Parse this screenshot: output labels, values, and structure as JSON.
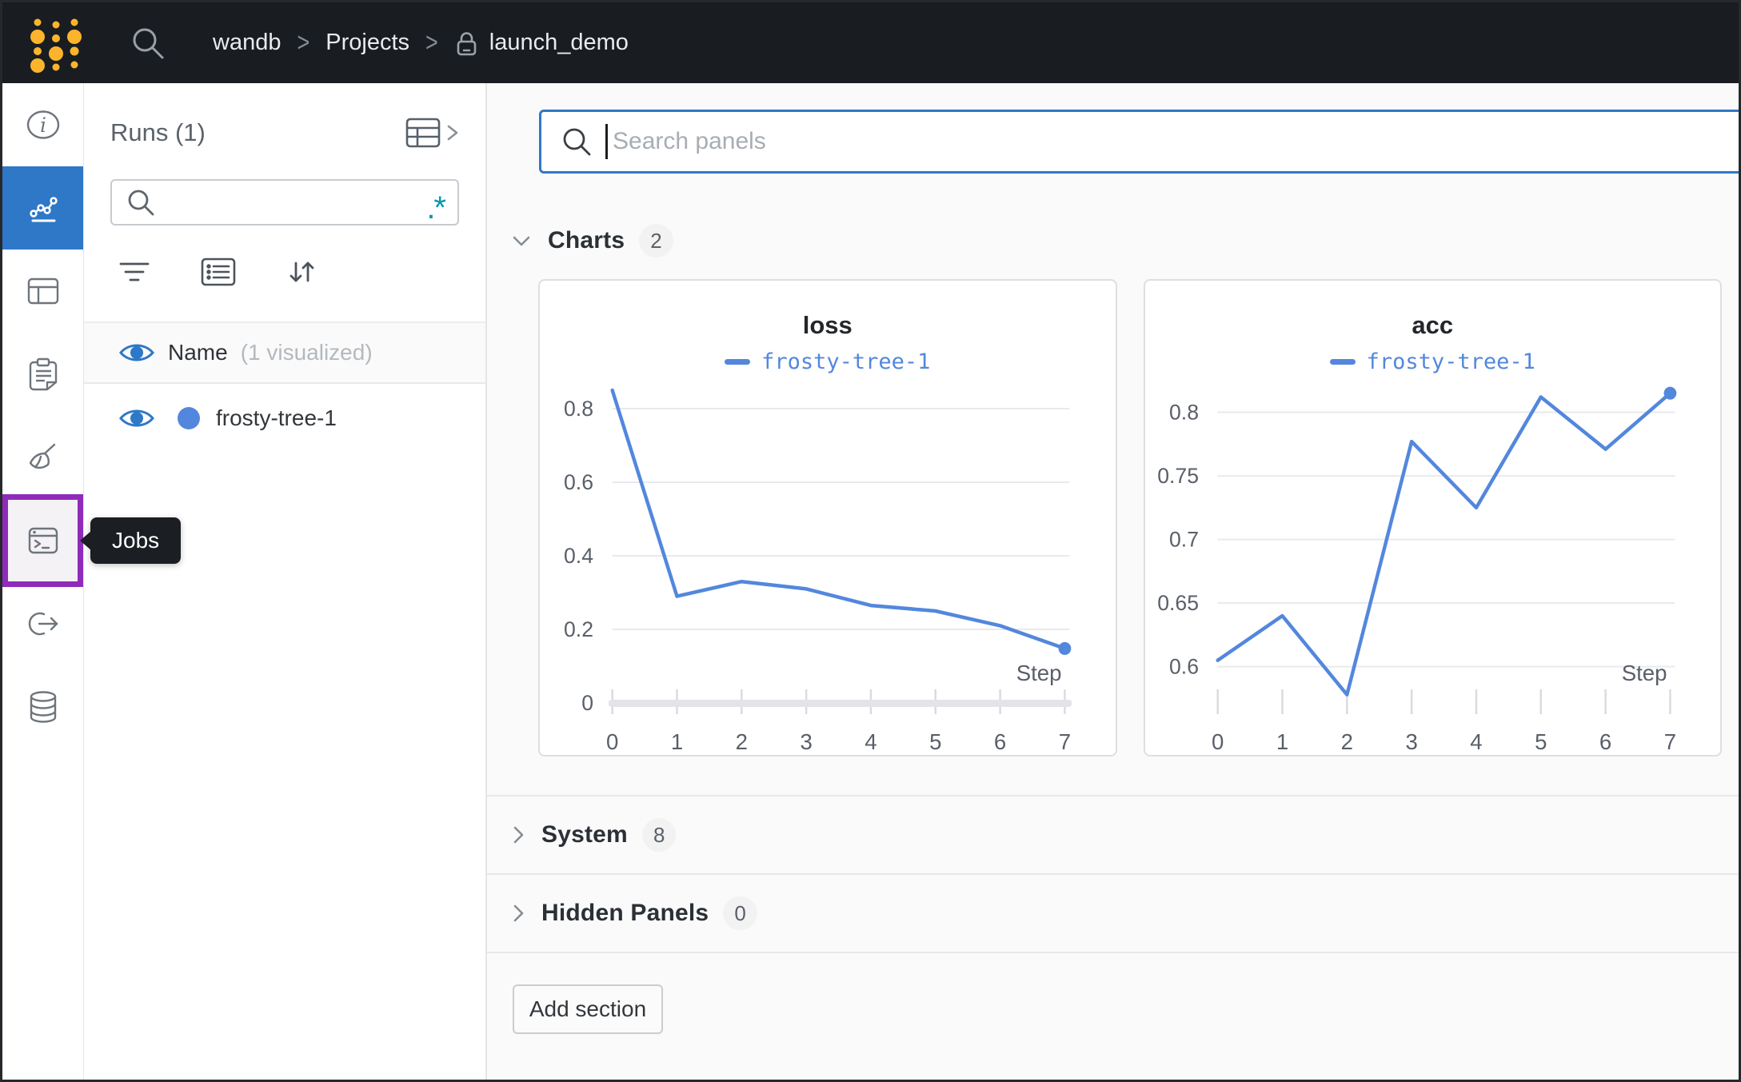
{
  "topbar": {
    "breadcrumb": {
      "entity": "wandb",
      "section": "Projects",
      "project": "launch_demo"
    },
    "separator": ">"
  },
  "sidebar": {
    "tooltip": "Jobs",
    "items": [
      {
        "icon": "info-icon",
        "active": false
      },
      {
        "icon": "line-chart-icon",
        "active": true
      },
      {
        "icon": "table-icon",
        "active": false
      },
      {
        "icon": "clipboard-icon",
        "active": false
      },
      {
        "icon": "broom-icon",
        "active": false
      },
      {
        "icon": "terminal-jobs-icon",
        "active": false,
        "highlighted": true
      },
      {
        "icon": "link-arrow-icon",
        "active": false
      },
      {
        "icon": "database-icon",
        "active": false
      }
    ]
  },
  "runs_panel": {
    "title": "Runs (1)",
    "search_value": "",
    "regex_toggle": ".*",
    "columns_header": {
      "name": "Name",
      "visualized_note": "(1 visualized)"
    },
    "runs": [
      {
        "name": "frosty-tree-1",
        "color": "#5387dd",
        "visible": true
      }
    ]
  },
  "main": {
    "search": {
      "placeholder": "Search panels",
      "value": ""
    },
    "sections": [
      {
        "label": "Charts",
        "count": "2",
        "state": "expanded"
      },
      {
        "label": "System",
        "count": "8",
        "state": "collapsed"
      },
      {
        "label": "Hidden Panels",
        "count": "0",
        "state": "collapsed"
      }
    ],
    "add_section_label": "Add section"
  },
  "chart_data": [
    {
      "type": "line",
      "title": "loss",
      "legend": "frosty-tree-1",
      "color": "#5387dd",
      "xlabel": "Step",
      "x": [
        0,
        1,
        2,
        3,
        4,
        5,
        6,
        7
      ],
      "values": [
        0.85,
        0.29,
        0.33,
        0.31,
        0.265,
        0.25,
        0.21,
        0.148
      ],
      "xlim": [
        0,
        7
      ],
      "ylim": [
        0,
        0.887
      ],
      "yticks": [
        0,
        0.2,
        0.4,
        0.6,
        0.8
      ],
      "ytick_labels": [
        "0",
        "0.2",
        "0.4",
        "0.6",
        "0.8"
      ],
      "grid": true,
      "axis_band": true,
      "end_dot": true,
      "legend_position": "top"
    },
    {
      "type": "line",
      "title": "acc",
      "legend": "frosty-tree-1",
      "color": "#5387dd",
      "xlabel": "Step",
      "x": [
        0,
        1,
        2,
        3,
        4,
        5,
        6,
        7
      ],
      "values": [
        0.605,
        0.64,
        0.578,
        0.777,
        0.725,
        0.812,
        0.771,
        0.815
      ],
      "xlim": [
        0,
        7
      ],
      "ylim": [
        0.5715,
        0.828
      ],
      "yticks": [
        0.6,
        0.65,
        0.7,
        0.75,
        0.8
      ],
      "ytick_labels": [
        "0.6",
        "0.65",
        "0.7",
        "0.75",
        "0.8"
      ],
      "grid": true,
      "axis_band": false,
      "end_dot": true,
      "legend_position": "top"
    }
  ],
  "colors": {
    "accent_blue": "#2e78c7",
    "run_blue": "#5387dd",
    "brand_yellow": "#fcb42d",
    "highlight_purple": "#8f2bba",
    "regex_teal": "#0097ab",
    "topbar_bg": "#191d21"
  }
}
